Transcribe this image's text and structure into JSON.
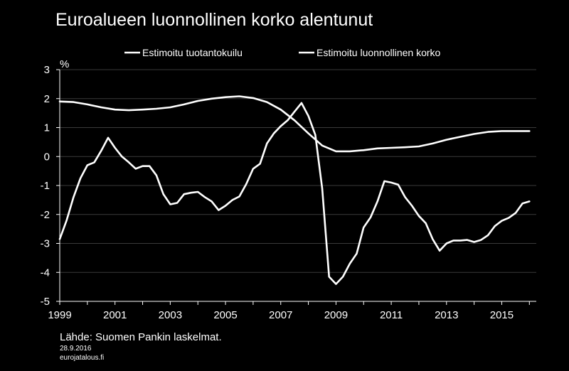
{
  "title": "Euroalueen luonnollinen korko alentunut",
  "source": "Lähde: Suomen Pankin laskelmat.",
  "date": "28.9.2016",
  "site": "eurojatalous.fi",
  "chart_data": {
    "type": "line",
    "title": "Euroalueen luonnollinen korko alentunut",
    "ylabel": "%",
    "xlabel": "",
    "xlim": [
      1999,
      2016.25
    ],
    "ylim": [
      -5,
      3
    ],
    "yticks": [
      3,
      2,
      1,
      0,
      -1,
      -2,
      -3,
      -4,
      -5
    ],
    "xticks": [
      1999,
      2001,
      2003,
      2005,
      2007,
      2009,
      2011,
      2013,
      2015
    ],
    "grid": "horizontal",
    "legend_position": "top",
    "line_color": "#ffffff",
    "series": [
      {
        "name": "Estimoitu tuotantokuilu",
        "points": [
          [
            1999.0,
            -2.85
          ],
          [
            1999.25,
            -2.2
          ],
          [
            1999.5,
            -1.4
          ],
          [
            1999.75,
            -0.75
          ],
          [
            2000.0,
            -0.3
          ],
          [
            2000.25,
            -0.2
          ],
          [
            2000.5,
            0.2
          ],
          [
            2000.75,
            0.65
          ],
          [
            2001.0,
            0.3
          ],
          [
            2001.25,
            0.0
          ],
          [
            2001.5,
            -0.2
          ],
          [
            2001.75,
            -0.42
          ],
          [
            2002.0,
            -0.33
          ],
          [
            2002.25,
            -0.33
          ],
          [
            2002.5,
            -0.65
          ],
          [
            2002.75,
            -1.3
          ],
          [
            2003.0,
            -1.65
          ],
          [
            2003.25,
            -1.6
          ],
          [
            2003.5,
            -1.3
          ],
          [
            2003.75,
            -1.25
          ],
          [
            2004.0,
            -1.22
          ],
          [
            2004.25,
            -1.4
          ],
          [
            2004.5,
            -1.55
          ],
          [
            2004.75,
            -1.85
          ],
          [
            2005.0,
            -1.7
          ],
          [
            2005.25,
            -1.5
          ],
          [
            2005.5,
            -1.38
          ],
          [
            2005.75,
            -0.95
          ],
          [
            2006.0,
            -0.42
          ],
          [
            2006.25,
            -0.25
          ],
          [
            2006.5,
            0.45
          ],
          [
            2006.75,
            0.8
          ],
          [
            2007.0,
            1.05
          ],
          [
            2007.25,
            1.25
          ],
          [
            2007.5,
            1.55
          ],
          [
            2007.75,
            1.85
          ],
          [
            2008.0,
            1.4
          ],
          [
            2008.25,
            0.75
          ],
          [
            2008.5,
            -1.1
          ],
          [
            2008.75,
            -4.15
          ],
          [
            2009.0,
            -4.4
          ],
          [
            2009.25,
            -4.15
          ],
          [
            2009.5,
            -3.7
          ],
          [
            2009.75,
            -3.35
          ],
          [
            2010.0,
            -2.45
          ],
          [
            2010.25,
            -2.1
          ],
          [
            2010.5,
            -1.55
          ],
          [
            2010.75,
            -0.85
          ],
          [
            2011.0,
            -0.9
          ],
          [
            2011.25,
            -0.97
          ],
          [
            2011.5,
            -1.4
          ],
          [
            2011.75,
            -1.7
          ],
          [
            2012.0,
            -2.05
          ],
          [
            2012.25,
            -2.3
          ],
          [
            2012.5,
            -2.85
          ],
          [
            2012.75,
            -3.25
          ],
          [
            2013.0,
            -3.0
          ],
          [
            2013.25,
            -2.9
          ],
          [
            2013.5,
            -2.9
          ],
          [
            2013.75,
            -2.88
          ],
          [
            2014.0,
            -2.95
          ],
          [
            2014.25,
            -2.88
          ],
          [
            2014.5,
            -2.72
          ],
          [
            2014.75,
            -2.4
          ],
          [
            2015.0,
            -2.22
          ],
          [
            2015.25,
            -2.12
          ],
          [
            2015.5,
            -1.95
          ],
          [
            2015.75,
            -1.62
          ],
          [
            2016.0,
            -1.55
          ]
        ]
      },
      {
        "name": "Estimoitu luonnollinen korko",
        "points": [
          [
            1999.0,
            1.9
          ],
          [
            1999.5,
            1.88
          ],
          [
            2000.0,
            1.8
          ],
          [
            2000.5,
            1.7
          ],
          [
            2001.0,
            1.62
          ],
          [
            2001.5,
            1.6
          ],
          [
            2002.0,
            1.62
          ],
          [
            2002.5,
            1.65
          ],
          [
            2003.0,
            1.7
          ],
          [
            2003.5,
            1.8
          ],
          [
            2004.0,
            1.92
          ],
          [
            2004.5,
            2.0
          ],
          [
            2005.0,
            2.05
          ],
          [
            2005.5,
            2.08
          ],
          [
            2006.0,
            2.02
          ],
          [
            2006.5,
            1.88
          ],
          [
            2007.0,
            1.62
          ],
          [
            2007.5,
            1.25
          ],
          [
            2008.0,
            0.8
          ],
          [
            2008.5,
            0.38
          ],
          [
            2009.0,
            0.18
          ],
          [
            2009.5,
            0.18
          ],
          [
            2010.0,
            0.22
          ],
          [
            2010.5,
            0.28
          ],
          [
            2011.0,
            0.3
          ],
          [
            2011.5,
            0.32
          ],
          [
            2012.0,
            0.35
          ],
          [
            2012.5,
            0.45
          ],
          [
            2013.0,
            0.58
          ],
          [
            2013.5,
            0.68
          ],
          [
            2014.0,
            0.78
          ],
          [
            2014.5,
            0.85
          ],
          [
            2015.0,
            0.88
          ],
          [
            2015.5,
            0.88
          ],
          [
            2016.0,
            0.88
          ]
        ]
      }
    ]
  }
}
